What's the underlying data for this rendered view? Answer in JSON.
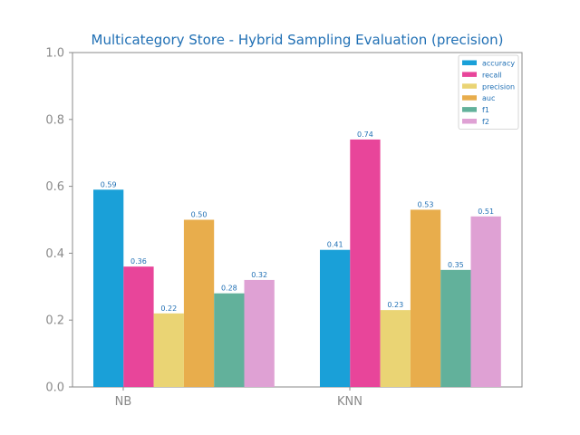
{
  "chart_data": {
    "type": "bar",
    "title": "Multicategory Store - Hybrid Sampling Evaluation (precision)",
    "xlabel": "",
    "ylabel": "",
    "categories": [
      "NB",
      "KNN"
    ],
    "ylim": [
      0,
      1
    ],
    "yticks": [
      "0.0",
      "0.2",
      "0.4",
      "0.6",
      "0.8",
      "1.0"
    ],
    "grid": false,
    "legend_position": "top-right",
    "series": [
      {
        "name": "accuracy",
        "color": "#1aa0d8",
        "values": [
          0.59,
          0.41
        ]
      },
      {
        "name": "recall",
        "color": "#e8459a",
        "values": [
          0.36,
          0.74
        ]
      },
      {
        "name": "precision",
        "color": "#ead474",
        "values": [
          0.22,
          0.23
        ]
      },
      {
        "name": "auc",
        "color": "#e8ad4c",
        "values": [
          0.5,
          0.53
        ]
      },
      {
        "name": "f1",
        "color": "#62b19b",
        "values": [
          0.28,
          0.35
        ]
      },
      {
        "name": "f2",
        "color": "#dfa1d4",
        "values": [
          0.32,
          0.51
        ]
      }
    ]
  }
}
